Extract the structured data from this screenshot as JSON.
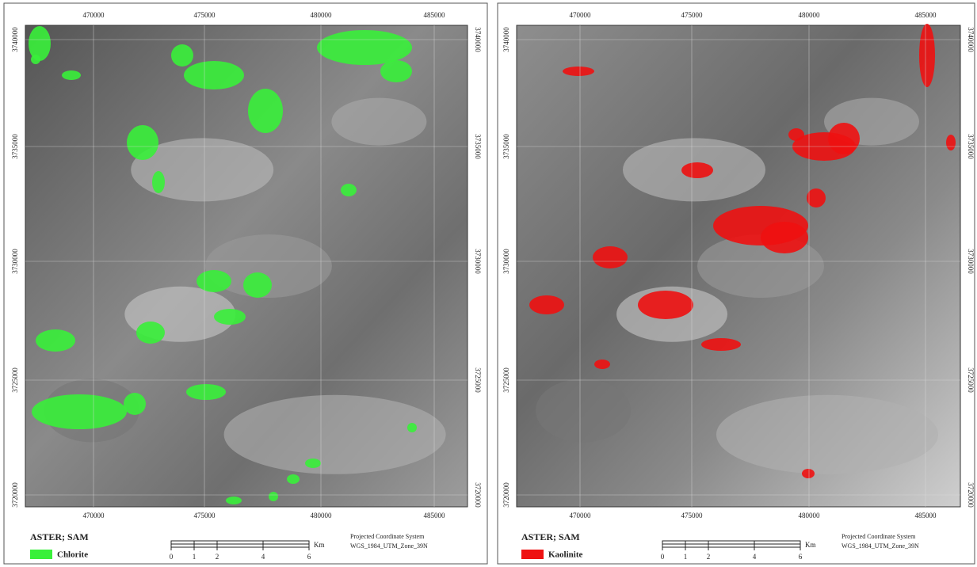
{
  "panels": [
    {
      "x_ticks": [
        470000,
        475000,
        480000,
        485000
      ],
      "y_ticks": [
        3740000,
        3735000,
        3730000,
        3725000,
        3720000
      ],
      "map_title": "ASTER; SAM",
      "legend": {
        "label": "Chlorite",
        "color": "#39f03a"
      },
      "scale": {
        "labels": [
          0,
          1,
          2,
          4,
          6
        ],
        "unit": "Km"
      },
      "projection": {
        "line1": "Projected Coordinate System",
        "line2": "WGS_1984_UTM_Zone_39N"
      }
    },
    {
      "x_ticks": [
        470000,
        475000,
        480000,
        485000
      ],
      "y_ticks": [
        3740000,
        3735000,
        3730000,
        3725000,
        3720000
      ],
      "map_title": "ASTER; SAM",
      "legend": {
        "label": "Kaolinite",
        "color": "#ee1111"
      },
      "scale": {
        "labels": [
          0,
          1,
          2,
          4,
          6
        ],
        "unit": "Km"
      },
      "projection": {
        "line1": "Projected Coordinate System",
        "line2": "WGS_1984_UTM_Zone_39N"
      }
    }
  ]
}
